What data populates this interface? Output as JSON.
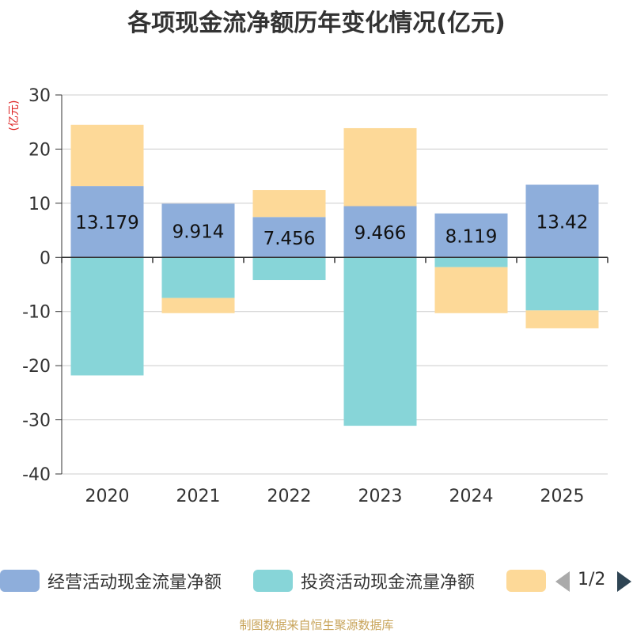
{
  "chart_data": {
    "type": "bar",
    "stacked": true,
    "title": "各项现金流净额历年变化情况(亿元)",
    "ylabel": "(亿元)",
    "xlabel": "",
    "ylim": [
      -40,
      30
    ],
    "yticks": [
      30,
      20,
      10,
      0,
      -10,
      -20,
      -30,
      -40
    ],
    "grid": true,
    "legend_position": "bottom",
    "categories": [
      "2020",
      "2021",
      "2022",
      "2023",
      "2024",
      "2025"
    ],
    "series": [
      {
        "name": "经营活动现金流量净额",
        "color": "#8eaedb",
        "values": [
          13.179,
          9.914,
          7.456,
          9.466,
          8.119,
          13.42
        ],
        "labels": [
          "13.179",
          "9.914",
          "7.456",
          "9.466",
          "8.119",
          "13.42"
        ]
      },
      {
        "name": "投资活动现金流量净额",
        "color": "#87d5d8",
        "values": [
          -21.8,
          -7.5,
          -4.2,
          -31.1,
          -1.8,
          -9.8
        ]
      },
      {
        "name": "",
        "color": "#fdd998",
        "values": [
          11.3,
          -2.8,
          5.0,
          14.4,
          -8.5,
          -3.3
        ]
      }
    ]
  },
  "legend": {
    "items": [
      "经营活动现金流量净额",
      "投资活动现金流量净额",
      ""
    ],
    "page_indicator": "1/2"
  },
  "source": "制图数据来自恒生聚源数据库"
}
